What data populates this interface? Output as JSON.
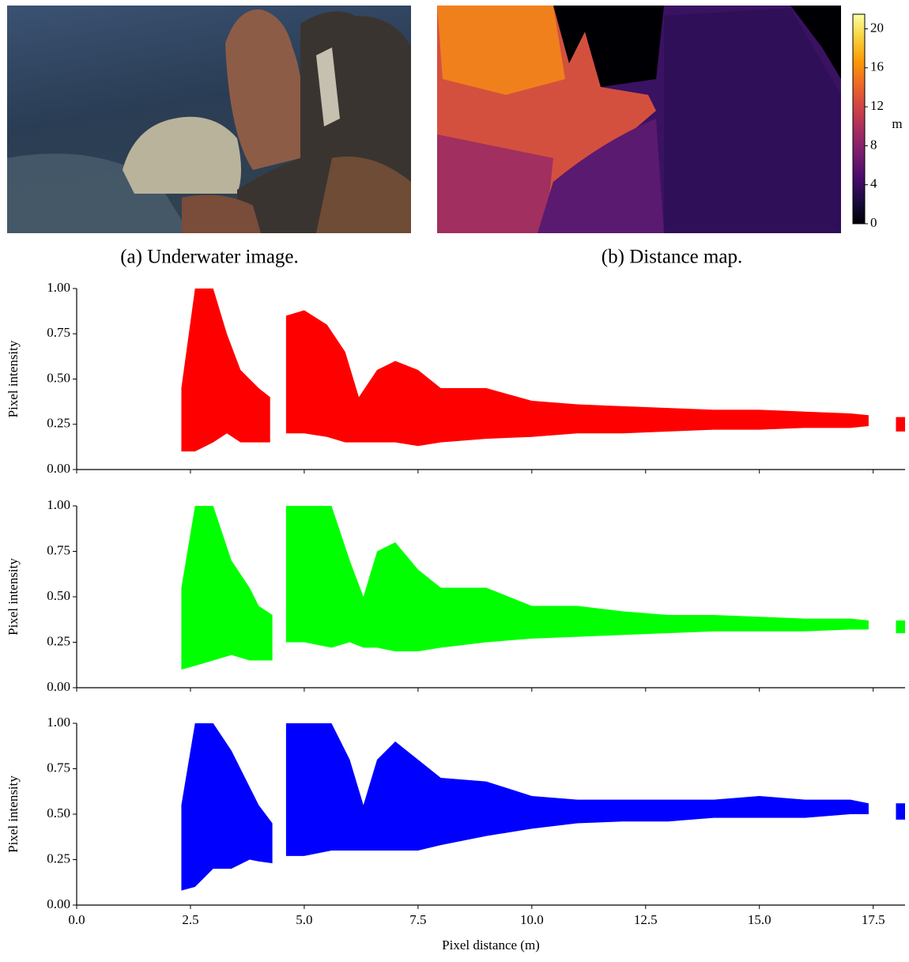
{
  "panels": {
    "a": {
      "caption": "(a) Underwater image."
    },
    "b": {
      "caption": "(b) Distance map."
    }
  },
  "chart_data": [
    {
      "type": "colorbar",
      "ylabel": "m",
      "ylim": [
        0,
        21.5
      ],
      "yticks": [
        0,
        4,
        8,
        12,
        16,
        20
      ],
      "colors": [
        "#000004",
        "#1b0c41",
        "#4a0c6b",
        "#781c6d",
        "#a52c60",
        "#cf4446",
        "#ed6925",
        "#fb9b06",
        "#f7d13d",
        "#fcffa4"
      ]
    },
    {
      "type": "band",
      "color": "#ff0000",
      "ylabel": "Pixel intensity",
      "xlim": [
        0,
        18.2
      ],
      "xticks": [
        0,
        2.5,
        5,
        7.5,
        10,
        12.5,
        15,
        17.5
      ],
      "ylim": [
        0,
        1
      ],
      "yticks": [
        {
          "value": 0,
          "label": "0.00"
        },
        {
          "value": 0.25,
          "label": "0.25"
        },
        {
          "value": 0.5,
          "label": "0.50"
        },
        {
          "value": 0.75,
          "label": "0.75"
        },
        {
          "value": 1,
          "label": "1.00"
        }
      ],
      "x": [
        2.3,
        2.6,
        3.0,
        3.3,
        3.6,
        4.0,
        4.25,
        4.4,
        4.6,
        5.0,
        5.5,
        5.9,
        6.2,
        6.6,
        7.0,
        7.5,
        8.0,
        9.0,
        10,
        11,
        12,
        13,
        14,
        15,
        16,
        17,
        17.4,
        17.7,
        18.0,
        18.2
      ],
      "low": [
        0.1,
        0.1,
        0.15,
        0.2,
        0.15,
        0.15,
        0.15,
        null,
        0.2,
        0.2,
        0.18,
        0.15,
        0.15,
        0.15,
        0.15,
        0.13,
        0.15,
        0.17,
        0.18,
        0.2,
        0.2,
        0.21,
        0.22,
        0.22,
        0.23,
        0.23,
        0.24,
        null,
        0.21,
        0.21
      ],
      "high": [
        0.45,
        1.0,
        1.0,
        0.75,
        0.55,
        0.45,
        0.4,
        null,
        0.85,
        0.88,
        0.8,
        0.65,
        0.4,
        0.55,
        0.6,
        0.55,
        0.45,
        0.45,
        0.38,
        0.36,
        0.35,
        0.34,
        0.33,
        0.33,
        0.32,
        0.31,
        0.3,
        null,
        0.29,
        0.29
      ]
    },
    {
      "type": "band",
      "color": "#00ff00",
      "ylabel": "Pixel intensity",
      "xlim": [
        0,
        18.2
      ],
      "xticks": [
        0,
        2.5,
        5,
        7.5,
        10,
        12.5,
        15,
        17.5
      ],
      "ylim": [
        0,
        1
      ],
      "yticks": [
        {
          "value": 0,
          "label": "0.00"
        },
        {
          "value": 0.25,
          "label": "0.25"
        },
        {
          "value": 0.5,
          "label": "0.50"
        },
        {
          "value": 0.75,
          "label": "0.75"
        },
        {
          "value": 1,
          "label": "1.00"
        }
      ],
      "x": [
        2.3,
        2.6,
        3.0,
        3.4,
        3.8,
        4.0,
        4.3,
        4.45,
        4.6,
        5.0,
        5.6,
        6.0,
        6.3,
        6.6,
        7.0,
        7.5,
        8,
        9,
        10,
        11,
        12,
        13,
        14,
        15,
        16,
        17,
        17.4,
        17.7,
        18.0,
        18.2
      ],
      "low": [
        0.1,
        0.12,
        0.15,
        0.18,
        0.15,
        0.15,
        0.15,
        null,
        0.25,
        0.25,
        0.22,
        0.25,
        0.22,
        0.22,
        0.2,
        0.2,
        0.22,
        0.25,
        0.27,
        0.28,
        0.29,
        0.3,
        0.31,
        0.31,
        0.31,
        0.32,
        0.32,
        null,
        0.3,
        0.3
      ],
      "high": [
        0.55,
        1.0,
        1.0,
        0.7,
        0.55,
        0.45,
        0.4,
        null,
        1.0,
        1.0,
        1.0,
        0.7,
        0.5,
        0.75,
        0.8,
        0.65,
        0.55,
        0.55,
        0.45,
        0.45,
        0.42,
        0.4,
        0.4,
        0.39,
        0.38,
        0.38,
        0.37,
        null,
        0.37,
        0.37
      ]
    },
    {
      "type": "band",
      "color": "#0000ff",
      "ylabel": "Pixel intensity",
      "xlabel": "Pixel distance (m)",
      "xlim": [
        0,
        18.2
      ],
      "xticks": [
        {
          "value": 0,
          "label": "0.0"
        },
        2.5,
        {
          "value": 5,
          "label": "5.0"
        },
        7.5,
        {
          "value": 10,
          "label": "10.0"
        },
        12.5,
        {
          "value": 15,
          "label": "15.0"
        },
        17.5
      ],
      "ylim": [
        0,
        1
      ],
      "yticks": [
        {
          "value": 0,
          "label": "0.00"
        },
        {
          "value": 0.25,
          "label": "0.25"
        },
        {
          "value": 0.5,
          "label": "0.50"
        },
        {
          "value": 0.75,
          "label": "0.75"
        },
        {
          "value": 1,
          "label": "1.00"
        }
      ],
      "x": [
        2.3,
        2.6,
        3.0,
        3.4,
        3.8,
        4.0,
        4.3,
        4.45,
        4.6,
        5.0,
        5.6,
        6.0,
        6.3,
        6.6,
        7.0,
        7.5,
        8,
        9,
        10,
        11,
        12,
        13,
        14,
        15,
        16,
        17,
        17.4,
        17.7,
        18.0,
        18.2
      ],
      "low": [
        0.08,
        0.1,
        0.2,
        0.2,
        0.25,
        0.24,
        0.23,
        null,
        0.27,
        0.27,
        0.3,
        0.3,
        0.3,
        0.3,
        0.3,
        0.3,
        0.33,
        0.38,
        0.42,
        0.45,
        0.46,
        0.46,
        0.48,
        0.48,
        0.48,
        0.5,
        0.5,
        null,
        0.47,
        0.47
      ],
      "high": [
        0.55,
        1.0,
        1.0,
        0.85,
        0.65,
        0.55,
        0.45,
        null,
        1.0,
        1.0,
        1.0,
        0.8,
        0.55,
        0.8,
        0.9,
        0.8,
        0.7,
        0.68,
        0.6,
        0.58,
        0.58,
        0.58,
        0.58,
        0.6,
        0.58,
        0.58,
        0.56,
        null,
        0.56,
        0.56
      ]
    }
  ]
}
